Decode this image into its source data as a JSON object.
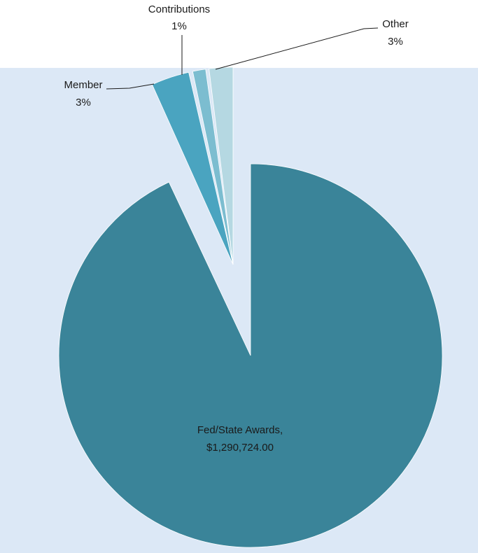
{
  "chart_data": {
    "type": "pie",
    "title": "",
    "categories": [
      "Fed/State Awards",
      "Member",
      "Contributions",
      "Other"
    ],
    "slices": [
      {
        "label": "Fed/State Awards",
        "value_text": "$1,290,724.00",
        "percent": 93,
        "color": "#3a8499",
        "exploded": false
      },
      {
        "label": "Member",
        "value_text": "3%",
        "percent": 3,
        "color": "#4aa4c0",
        "exploded": true
      },
      {
        "label": "Contributions",
        "value_text": "1%",
        "percent": 1,
        "color": "#7cbdd0",
        "exploded": true
      },
      {
        "label": "Other",
        "value_text": "3%",
        "percent": 3,
        "color": "#b5d8e2",
        "exploded": true
      }
    ],
    "background_color": "#dce8f6",
    "legend": "none"
  },
  "labels": {
    "fed_state_name": "Fed/State Awards,",
    "fed_state_value": "$1,290,724.00",
    "member_name": "Member",
    "member_pct": "3%",
    "contributions_name": "Contributions",
    "contributions_pct": "1%",
    "other_name": "Other",
    "other_pct": "3%"
  }
}
